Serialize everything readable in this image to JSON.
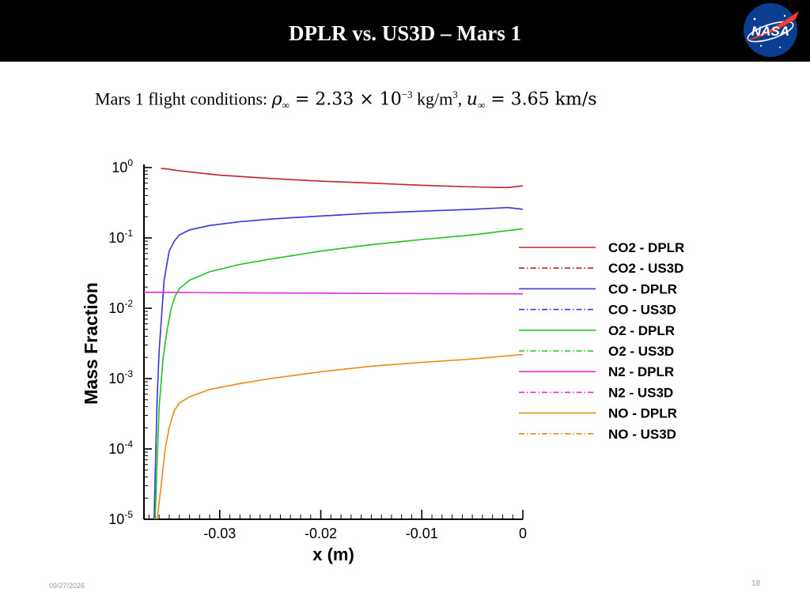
{
  "slide": {
    "title": "DPLR vs. US3D – Mars 1",
    "logo_text": "NASA",
    "conditions": {
      "prefix": "Mars 1 flight conditions: ",
      "rho_symbol": "ρ",
      "inf_symbol": "∞",
      "rho_eq": " = 2.33 × 10",
      "rho_exp": "−3",
      "rho_unit": " kg/m",
      "rho_unit_exp": "3",
      "sep": ", ",
      "u_symbol": "u",
      "u_eq": " = 3.65 km/s"
    },
    "date": "09/27/2026",
    "page_number": "18"
  },
  "colors": {
    "title_bar": "#000000",
    "CO2": "#c0262d",
    "CO": "#3838d8",
    "O2": "#22c41e",
    "N2": "#e02ce6",
    "NO": "#ee8a18"
  },
  "chart_data": {
    "type": "line",
    "title": "",
    "xlabel": "x (m)",
    "ylabel": "Mass Fraction",
    "xlim": [
      -0.0375,
      0.0
    ],
    "ylim": [
      1e-05,
      1
    ],
    "yscale": "log",
    "grid": false,
    "legend_position": "right",
    "x_ticks": [
      -0.03,
      -0.02,
      -0.01,
      0
    ],
    "x_tick_labels": [
      "-0.03",
      "-0.02",
      "-0.01",
      "0"
    ],
    "y_ticks": [
      1e-05,
      0.0001,
      0.001,
      0.01,
      0.1,
      1
    ],
    "y_tick_labels": [
      {
        "base": "10",
        "exp": "-5"
      },
      {
        "base": "10",
        "exp": "-4"
      },
      {
        "base": "10",
        "exp": "-3"
      },
      {
        "base": "10",
        "exp": "-2"
      },
      {
        "base": "10",
        "exp": "-1"
      },
      {
        "base": "10",
        "exp": "0"
      }
    ],
    "series": [
      {
        "name": "CO2 - DPLR",
        "species": "CO2",
        "style": "solid",
        "x": [
          -0.0358,
          -0.0353,
          -0.034,
          -0.03,
          -0.025,
          -0.02,
          -0.015,
          -0.01,
          -0.005,
          -0.0015,
          0.0
        ],
        "y": [
          0.97,
          0.96,
          0.9,
          0.78,
          0.7,
          0.64,
          0.6,
          0.56,
          0.53,
          0.52,
          0.55
        ]
      },
      {
        "name": "CO2 - US3D",
        "species": "CO2",
        "style": "dashdot",
        "x": [
          -0.0358,
          -0.0353,
          -0.034,
          -0.03,
          -0.025,
          -0.02,
          -0.015,
          -0.01,
          -0.005,
          -0.0015,
          0.0
        ],
        "y": [
          0.97,
          0.96,
          0.9,
          0.78,
          0.7,
          0.64,
          0.6,
          0.56,
          0.53,
          0.52,
          0.55
        ]
      },
      {
        "name": "CO - DPLR",
        "species": "CO",
        "style": "solid",
        "x": [
          -0.0365,
          -0.0362,
          -0.036,
          -0.0357,
          -0.0355,
          -0.0352,
          -0.035,
          -0.0345,
          -0.034,
          -0.033,
          -0.031,
          -0.028,
          -0.025,
          -0.02,
          -0.015,
          -0.01,
          -0.005,
          -0.0015,
          0.0
        ],
        "y": [
          1e-05,
          0.0005,
          0.0025,
          0.01,
          0.025,
          0.045,
          0.065,
          0.09,
          0.11,
          0.13,
          0.15,
          0.17,
          0.185,
          0.205,
          0.225,
          0.24,
          0.255,
          0.27,
          0.255
        ]
      },
      {
        "name": "CO - US3D",
        "species": "CO",
        "style": "dashdot",
        "x": [
          -0.0365,
          -0.0362,
          -0.036,
          -0.0357,
          -0.0355,
          -0.0352,
          -0.035,
          -0.0345,
          -0.034,
          -0.033,
          -0.031,
          -0.028,
          -0.025,
          -0.02,
          -0.015,
          -0.01,
          -0.005,
          -0.0015,
          0.0
        ],
        "y": [
          1e-05,
          0.0005,
          0.0025,
          0.01,
          0.025,
          0.045,
          0.065,
          0.09,
          0.11,
          0.13,
          0.15,
          0.17,
          0.185,
          0.205,
          0.225,
          0.24,
          0.255,
          0.27,
          0.255
        ]
      },
      {
        "name": "O2 - DPLR",
        "species": "O2",
        "style": "solid",
        "x": [
          -0.0364,
          -0.036,
          -0.0356,
          -0.0352,
          -0.0348,
          -0.0344,
          -0.034,
          -0.033,
          -0.031,
          -0.028,
          -0.025,
          -0.02,
          -0.015,
          -0.01,
          -0.005,
          0.0
        ],
        "y": [
          1e-05,
          0.0004,
          0.002,
          0.005,
          0.01,
          0.015,
          0.019,
          0.025,
          0.033,
          0.042,
          0.05,
          0.065,
          0.08,
          0.095,
          0.11,
          0.135
        ]
      },
      {
        "name": "O2 - US3D",
        "species": "O2",
        "style": "dashdot",
        "x": [
          -0.0364,
          -0.036,
          -0.0356,
          -0.0352,
          -0.0348,
          -0.0344,
          -0.034,
          -0.033,
          -0.031,
          -0.028,
          -0.025,
          -0.02,
          -0.015,
          -0.01,
          -0.005,
          0.0
        ],
        "y": [
          1e-05,
          0.0004,
          0.002,
          0.005,
          0.01,
          0.015,
          0.019,
          0.025,
          0.033,
          0.042,
          0.05,
          0.065,
          0.08,
          0.095,
          0.11,
          0.135
        ]
      },
      {
        "name": "N2 - DPLR",
        "species": "N2",
        "style": "solid",
        "x": [
          -0.0375,
          -0.036,
          -0.03,
          -0.02,
          -0.01,
          0.0
        ],
        "y": [
          0.0168,
          0.0168,
          0.0166,
          0.0164,
          0.0162,
          0.016
        ]
      },
      {
        "name": "N2 - US3D",
        "species": "N2",
        "style": "dashdot",
        "x": [
          -0.0375,
          -0.036,
          -0.03,
          -0.02,
          -0.01,
          0.0
        ],
        "y": [
          0.0168,
          0.0168,
          0.0166,
          0.0164,
          0.0162,
          0.016
        ]
      },
      {
        "name": "NO - DPLR",
        "species": "NO",
        "style": "solid",
        "x": [
          -0.0362,
          -0.0358,
          -0.0354,
          -0.035,
          -0.0345,
          -0.034,
          -0.033,
          -0.031,
          -0.028,
          -0.025,
          -0.02,
          -0.015,
          -0.01,
          -0.005,
          0.0
        ],
        "y": [
          1e-05,
          3e-05,
          0.0001,
          0.0002,
          0.00035,
          0.00045,
          0.00055,
          0.0007,
          0.00085,
          0.001,
          0.00125,
          0.0015,
          0.0017,
          0.0019,
          0.0022
        ]
      },
      {
        "name": "NO - US3D",
        "species": "NO",
        "style": "dashdot",
        "x": [
          -0.0362,
          -0.0358,
          -0.0354,
          -0.035,
          -0.0345,
          -0.034,
          -0.033,
          -0.031,
          -0.028,
          -0.025,
          -0.02,
          -0.015,
          -0.01,
          -0.005,
          0.0
        ],
        "y": [
          1e-05,
          3e-05,
          0.0001,
          0.0002,
          0.00035,
          0.00045,
          0.00055,
          0.0007,
          0.00085,
          0.001,
          0.00125,
          0.0015,
          0.0017,
          0.0019,
          0.0022
        ]
      }
    ]
  }
}
